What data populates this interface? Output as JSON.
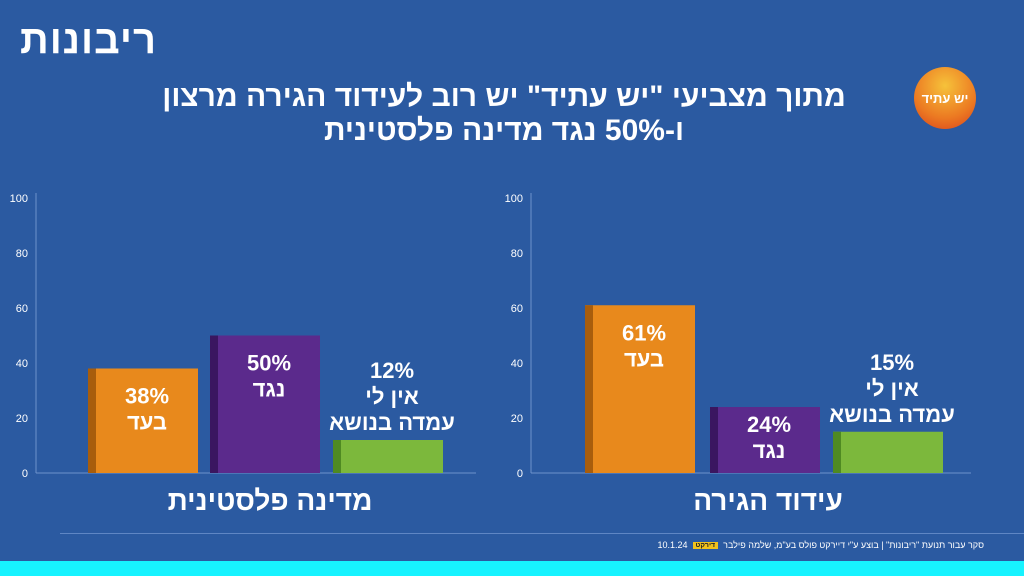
{
  "brand": "ריבונות",
  "logo_text": "יש עתיד",
  "title_line1": "מתוך מצביעי \"יש עתיד\" יש רוב לעידוד הגירה מרצון",
  "title_line2": "ו-50% נגד מדינה פלסטינית",
  "footer": {
    "source": "סקר עבור תנועת \"ריבונות\" | בוצע ע\"י דיירקט פולס בע\"מ, שלמה פילבר",
    "mini_logo": "דירקט",
    "date": "10.1.24"
  },
  "colors": {
    "background": "#2b5aa1",
    "for": "#e8891c",
    "against": "#5b2a8c",
    "no_opinion": "#7cb83c"
  },
  "chart_data": [
    {
      "type": "bar",
      "title": "מדינה פלסטינית",
      "ylim": [
        0,
        100
      ],
      "yticks": [
        0,
        20,
        40,
        60,
        80,
        100
      ],
      "grid": false,
      "categories": [
        "בעד",
        "נגד",
        "אין לי עמדה בנושא"
      ],
      "values": [
        38,
        50,
        12
      ],
      "labels": [
        "38%",
        "50%",
        "12%"
      ],
      "label_lines": [
        [
          "בעד"
        ],
        [
          "נגד"
        ],
        [
          "אין לי",
          "עמדה בנושא"
        ]
      ]
    },
    {
      "type": "bar",
      "title": "עידוד הגירה",
      "ylim": [
        0,
        100
      ],
      "yticks": [
        0,
        20,
        40,
        60,
        80,
        100
      ],
      "grid": false,
      "categories": [
        "בעד",
        "נגד",
        "אין לי עמדה בנושא"
      ],
      "values": [
        61,
        24,
        15
      ],
      "labels": [
        "61%",
        "24%",
        "15%"
      ],
      "label_lines": [
        [
          "בעד"
        ],
        [
          "נגד"
        ],
        [
          "אין לי",
          "עמדה בנושא"
        ]
      ]
    }
  ]
}
